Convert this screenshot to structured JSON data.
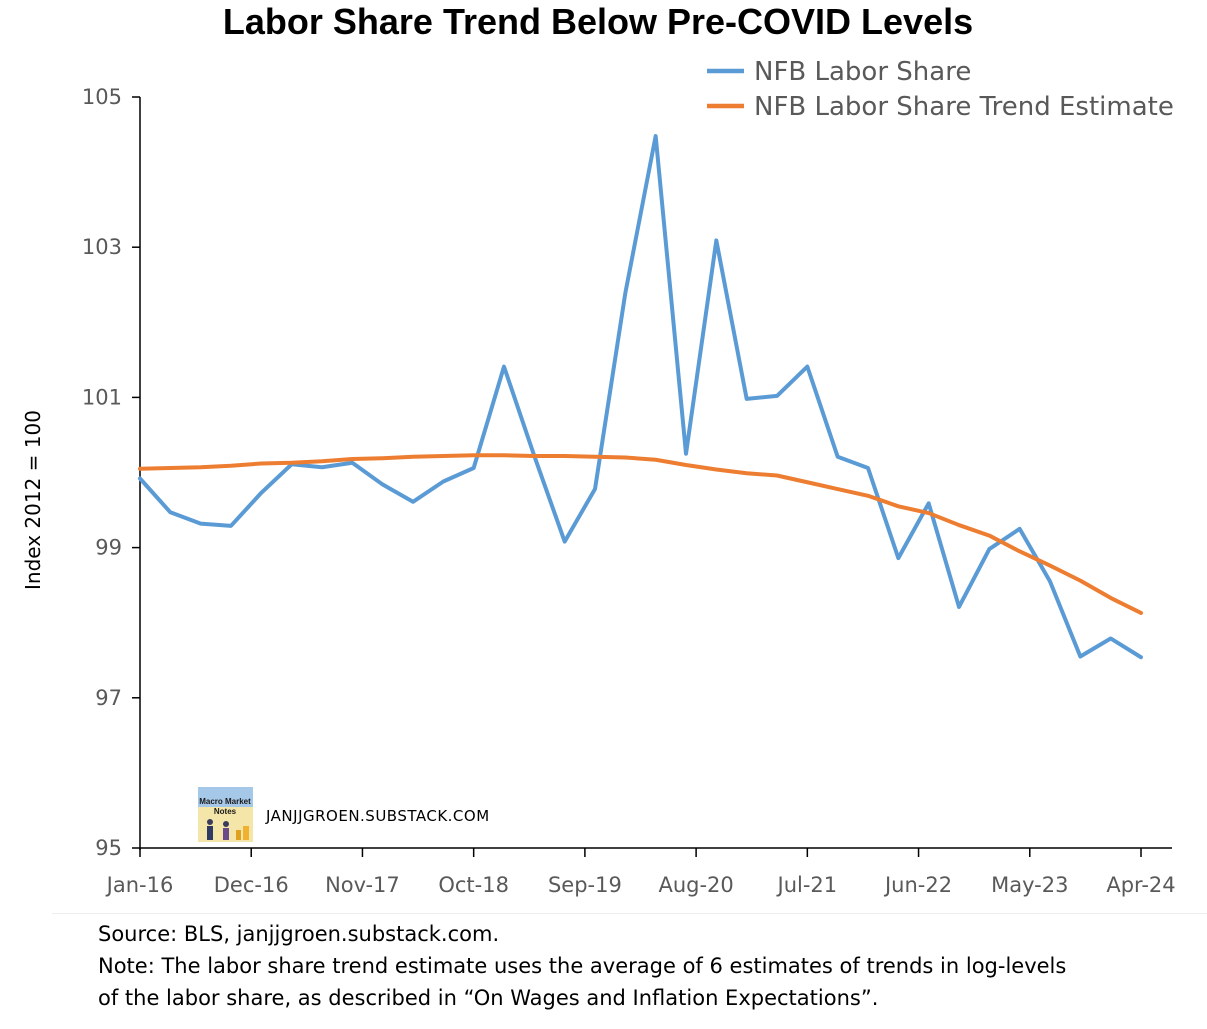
{
  "chart_data": {
    "type": "line",
    "title": "Labor Share Trend Below Pre-COVID Levels",
    "ylabel": "Index 2012 = 100",
    "xlabel": "",
    "ylim": [
      95,
      105
    ],
    "yticks": [
      "95",
      "97",
      "99",
      "101",
      "103",
      "105"
    ],
    "xticks": [
      "Jan-16",
      "Dec-16",
      "Nov-17",
      "Oct-18",
      "Sep-19",
      "Aug-20",
      "Jul-21",
      "Jun-22",
      "May-23",
      "Apr-24"
    ],
    "grid": false,
    "legend_position": "top-right",
    "x": [
      "Q1 2016",
      "Q2 2016",
      "Q3 2016",
      "Q4 2016",
      "Q1 2017",
      "Q2 2017",
      "Q3 2017",
      "Q4 2017",
      "Q1 2018",
      "Q2 2018",
      "Q3 2018",
      "Q4 2018",
      "Q1 2019",
      "Q2 2019",
      "Q3 2019",
      "Q4 2019",
      "Q1 2020",
      "Q2 2020",
      "Q3 2020",
      "Q4 2020",
      "Q1 2021",
      "Q2 2021",
      "Q3 2021",
      "Q4 2021",
      "Q1 2022",
      "Q2 2022",
      "Q3 2022",
      "Q4 2022",
      "Q1 2023",
      "Q2 2023",
      "Q3 2023",
      "Q4 2023",
      "Q1 2024",
      "Q2 2024"
    ],
    "series": [
      {
        "name": "NFB Labor Share",
        "color": "#5b9bd5",
        "values": [
          99.92,
          99.47,
          99.32,
          99.29,
          99.73,
          100.11,
          100.07,
          100.13,
          99.84,
          99.61,
          99.88,
          100.06,
          101.41,
          100.22,
          99.08,
          99.78,
          102.39,
          104.48,
          100.25,
          103.09,
          100.98,
          101.02,
          101.41,
          100.21,
          100.06,
          98.86,
          99.59,
          98.21,
          98.98,
          99.25,
          98.55,
          97.55,
          97.79,
          97.54
        ]
      },
      {
        "name": "NFB Labor Share Trend Estimate",
        "color": "#ed7d31",
        "values": [
          100.05,
          100.06,
          100.07,
          100.09,
          100.12,
          100.13,
          100.15,
          100.18,
          100.19,
          100.21,
          100.22,
          100.23,
          100.23,
          100.22,
          100.22,
          100.21,
          100.2,
          100.17,
          100.1,
          100.04,
          99.99,
          99.96,
          99.87,
          99.78,
          99.69,
          99.55,
          99.46,
          99.3,
          99.16,
          98.95,
          98.76,
          98.56,
          98.33,
          98.13
        ]
      }
    ]
  },
  "watermark": {
    "text": "JANJJGROEN.SUBSTACK.COM",
    "logo_line1": "Macro Market",
    "logo_line2": "Notes"
  },
  "footer": {
    "source": "Source: BLS, janjjgroen.substack.com.",
    "note_line1": "Note: The labor share trend estimate uses the average of 6 estimates of trends in log-levels",
    "note_line2": "of the labor share, as described in “On Wages and Inflation Expectations”."
  }
}
